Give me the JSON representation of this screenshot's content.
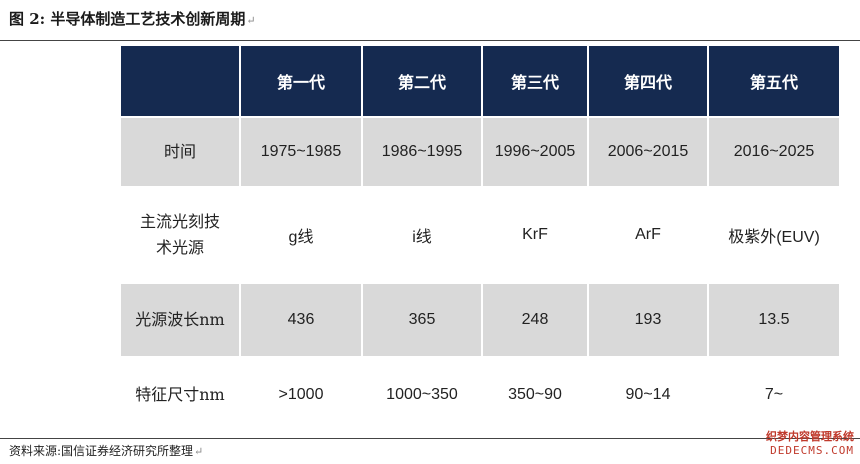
{
  "figure": {
    "title": "图 2:  半导体制造工艺技术创新周期",
    "source": "资料来源:国信证券经济研究所整理"
  },
  "table": {
    "headers": [
      "第一代",
      "第二代",
      "第三代",
      "第四代",
      "第五代"
    ],
    "rows": [
      {
        "label": "时间",
        "cells": [
          "1975~1985",
          "1986~1995",
          "1996~2005",
          "2006~2015",
          "2016~2025"
        ]
      },
      {
        "label_lines": [
          "主流光刻技",
          "术光源"
        ],
        "cells": [
          "g线",
          "i线",
          "KrF",
          "ArF",
          "极紫外(EUV)"
        ]
      },
      {
        "label": "光源波长nm",
        "cells": [
          "436",
          "365",
          "248",
          "193",
          "13.5"
        ]
      },
      {
        "label": "特征尺寸nm",
        "cells": [
          ">1000",
          "1000~350",
          "350~90",
          "90~14",
          "7~"
        ]
      }
    ]
  },
  "watermark": {
    "line1": "织梦内容管理系统",
    "line2": "DEDECMS.COM"
  },
  "colors": {
    "header_bg": "#152a50",
    "shaded_row": "#d9d9d9",
    "header_text": "#ffffff"
  }
}
